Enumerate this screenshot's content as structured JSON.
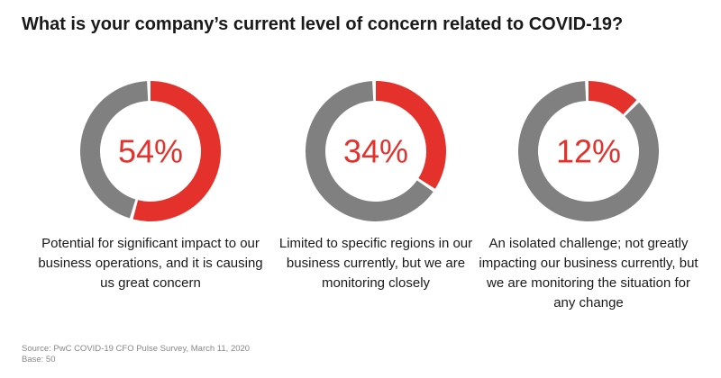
{
  "title": "What is your company’s current level of concern related to COVID-19?",
  "chart_data": {
    "type": "pie",
    "variant": "donut",
    "title": "What is your company’s current level of concern related to COVID-19?",
    "categories": [
      "Potential for significant impact to our business operations, and it is causing us great concern",
      "Limited to specific regions in our business currently, but we are monitoring closely",
      "An isolated challenge; not greatly impacting our business currently, but we are monitoring the situation for any change"
    ],
    "values": [
      54,
      34,
      12
    ],
    "value_labels": [
      "54%",
      "34%",
      "12%"
    ],
    "unit": "%",
    "colors": {
      "highlight": "#e4312b",
      "remainder": "#808080",
      "value_text": "#e4312b"
    }
  },
  "footer": {
    "source": "Source: PwC COVID-19 CFO Pulse Survey, March 11, 2020",
    "base": "Base: 50"
  }
}
